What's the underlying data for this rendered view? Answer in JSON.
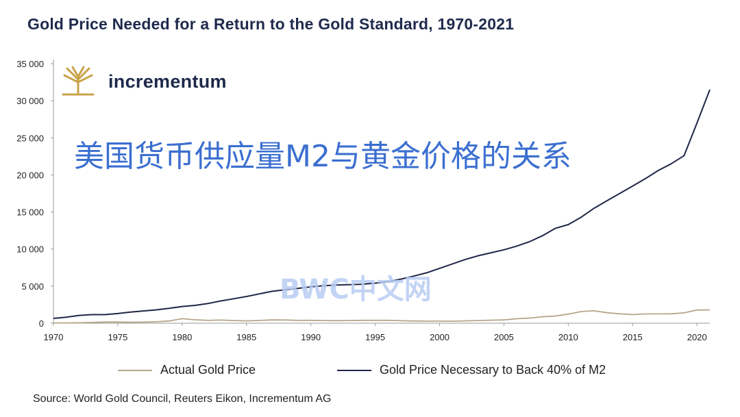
{
  "header": {
    "title": "Gold Price Needed for a Return to the Gold Standard, 1970-2021"
  },
  "logo": {
    "text": "incrementum"
  },
  "overlay_text": "美国货币供应量M2与黄金价格的关系",
  "watermark": "BWC中文网",
  "source": "Source: World Gold Council, Reuters Eikon, Incrementum AG",
  "colors": {
    "actual": "#b5a58a",
    "m2": "#1f2547",
    "title": "#1f2a4d",
    "overlay": "#3b6fd0"
  },
  "chart_data": {
    "type": "line",
    "title": "Gold Price Needed for a Return to the Gold Standard, 1970-2021",
    "xlim": [
      1970,
      2021
    ],
    "ylim": [
      0,
      35000
    ],
    "x_ticks": [
      1970,
      1975,
      1980,
      1985,
      1990,
      1995,
      2000,
      2005,
      2010,
      2015,
      2020
    ],
    "y_ticks": [
      0,
      5000,
      10000,
      15000,
      20000,
      25000,
      30000,
      35000
    ],
    "y_tick_labels": [
      "0",
      "5 000",
      "10 000",
      "15 000",
      "20 000",
      "25 000",
      "30 000",
      "35 000"
    ],
    "grid": false,
    "legend_position": "bottom",
    "series": [
      {
        "name": "Actual Gold Price",
        "color": "#b5a58a",
        "points": [
          [
            1970,
            36
          ],
          [
            1971,
            41
          ],
          [
            1972,
            58
          ],
          [
            1973,
            97
          ],
          [
            1974,
            154
          ],
          [
            1975,
            161
          ],
          [
            1976,
            125
          ],
          [
            1977,
            148
          ],
          [
            1978,
            193
          ],
          [
            1979,
            307
          ],
          [
            1980,
            612
          ],
          [
            1981,
            460
          ],
          [
            1982,
            376
          ],
          [
            1983,
            424
          ],
          [
            1984,
            361
          ],
          [
            1985,
            317
          ],
          [
            1986,
            368
          ],
          [
            1987,
            447
          ],
          [
            1988,
            437
          ],
          [
            1989,
            381
          ],
          [
            1990,
            384
          ],
          [
            1991,
            362
          ],
          [
            1992,
            344
          ],
          [
            1993,
            360
          ],
          [
            1994,
            384
          ],
          [
            1995,
            384
          ],
          [
            1996,
            388
          ],
          [
            1997,
            331
          ],
          [
            1998,
            294
          ],
          [
            1999,
            279
          ],
          [
            2000,
            279
          ],
          [
            2001,
            271
          ],
          [
            2002,
            310
          ],
          [
            2003,
            364
          ],
          [
            2004,
            410
          ],
          [
            2005,
            445
          ],
          [
            2006,
            604
          ],
          [
            2007,
            695
          ],
          [
            2008,
            872
          ],
          [
            2009,
            972
          ],
          [
            2010,
            1225
          ],
          [
            2011,
            1572
          ],
          [
            2012,
            1669
          ],
          [
            2013,
            1411
          ],
          [
            2014,
            1266
          ],
          [
            2015,
            1160
          ],
          [
            2016,
            1251
          ],
          [
            2017,
            1257
          ],
          [
            2018,
            1268
          ],
          [
            2019,
            1393
          ],
          [
            2020,
            1770
          ],
          [
            2021,
            1799
          ]
        ]
      },
      {
        "name": "Gold Price Necessary to Back 40% of M2",
        "color": "#1f2547",
        "points": [
          [
            1970,
            650
          ],
          [
            1971,
            800
          ],
          [
            1972,
            1050
          ],
          [
            1973,
            1150
          ],
          [
            1974,
            1150
          ],
          [
            1975,
            1300
          ],
          [
            1976,
            1500
          ],
          [
            1977,
            1650
          ],
          [
            1978,
            1800
          ],
          [
            1979,
            2000
          ],
          [
            1980,
            2250
          ],
          [
            1981,
            2400
          ],
          [
            1982,
            2650
          ],
          [
            1983,
            3000
          ],
          [
            1984,
            3300
          ],
          [
            1985,
            3600
          ],
          [
            1986,
            3950
          ],
          [
            1987,
            4300
          ],
          [
            1988,
            4500
          ],
          [
            1989,
            4700
          ],
          [
            1990,
            4900
          ],
          [
            1991,
            5050
          ],
          [
            1992,
            5150
          ],
          [
            1993,
            5200
          ],
          [
            1994,
            5250
          ],
          [
            1995,
            5400
          ],
          [
            1996,
            5600
          ],
          [
            1997,
            5950
          ],
          [
            1998,
            6350
          ],
          [
            1999,
            6800
          ],
          [
            2000,
            7400
          ],
          [
            2001,
            8000
          ],
          [
            2002,
            8600
          ],
          [
            2003,
            9100
          ],
          [
            2004,
            9500
          ],
          [
            2005,
            9900
          ],
          [
            2006,
            10400
          ],
          [
            2007,
            11000
          ],
          [
            2008,
            11800
          ],
          [
            2009,
            12800
          ],
          [
            2010,
            13300
          ],
          [
            2011,
            14300
          ],
          [
            2012,
            15500
          ],
          [
            2013,
            16500
          ],
          [
            2014,
            17500
          ],
          [
            2015,
            18500
          ],
          [
            2016,
            19500
          ],
          [
            2017,
            20600
          ],
          [
            2018,
            21500
          ],
          [
            2019,
            22600
          ],
          [
            2020,
            27000
          ],
          [
            2021,
            31500
          ]
        ]
      }
    ]
  }
}
